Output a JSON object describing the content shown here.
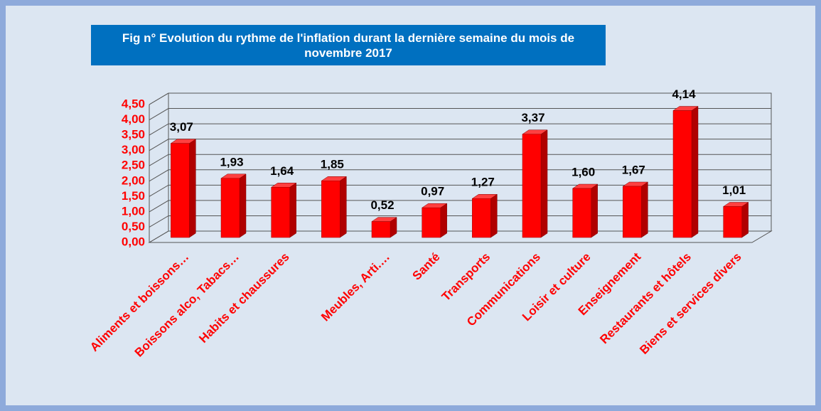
{
  "chart_data": {
    "type": "bar3d",
    "title": "Fig n° Evolution du rythme de l'inflation  durant la dernière semaine du mois de novembre 2017",
    "categories": [
      "Aliments et boissons…",
      "Boissons alco, Tabacs…",
      "Habits et chaussures",
      null,
      "Meubles, Arti.…",
      "Santé",
      "Transports",
      "Communications",
      "Loisir et culture",
      "Enseignement",
      "Restaurants et hôtels",
      "Biens et services divers"
    ],
    "values": [
      3.07,
      1.93,
      1.64,
      1.85,
      0.52,
      0.97,
      1.27,
      3.37,
      1.6,
      1.67,
      4.14,
      1.01
    ],
    "value_labels": [
      "3,07",
      "1,93",
      "1,64",
      "1,85",
      "0,52",
      "0,97",
      "1,27",
      "3,37",
      "1,60",
      "1,67",
      "4,14",
      "1,01"
    ],
    "color": "#ff0000",
    "ylim": [
      0,
      4.5
    ],
    "yticks": [
      {
        "value": 0,
        "label": "0,00"
      },
      {
        "value": 0.5,
        "label": "0,50"
      },
      {
        "value": 1,
        "label": "1,00"
      },
      {
        "value": 1.5,
        "label": "1,50"
      },
      {
        "value": 2,
        "label": "2,00"
      },
      {
        "value": 2.5,
        "label": "2,50"
      },
      {
        "value": 3,
        "label": "3,00"
      },
      {
        "value": 3.5,
        "label": "3,50"
      },
      {
        "value": 4,
        "label": "4,00"
      },
      {
        "value": 4.5,
        "label": "4,50"
      }
    ],
    "grid": true
  }
}
